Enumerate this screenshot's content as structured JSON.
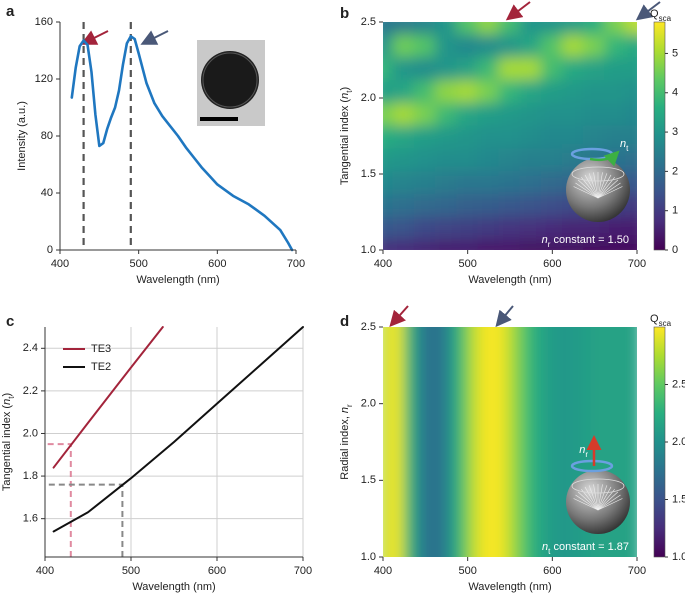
{
  "chart_data": [
    {
      "type": "line",
      "panel": "a",
      "xlabel": "Wavelength (nm)",
      "ylabel": [
        {
          "text": "Intensity (a.u.)"
        }
      ],
      "xlim": [
        400,
        700
      ],
      "xticks": [
        400,
        500,
        600,
        700
      ],
      "ylim": [
        0,
        160
      ],
      "yticks": [
        0,
        40,
        80,
        120,
        160
      ],
      "series": [
        {
          "color": "#1f77c0",
          "x": [
            415,
            420,
            425,
            430,
            435,
            440,
            445,
            450,
            455,
            460,
            465,
            470,
            475,
            480,
            485,
            490,
            495,
            500,
            510,
            520,
            530,
            540,
            550,
            560,
            570,
            580,
            590,
            600,
            620,
            640,
            660,
            680,
            690,
            695
          ],
          "values": [
            107,
            128,
            143,
            147,
            144,
            125,
            95,
            73,
            75,
            85,
            93,
            100,
            112,
            130,
            145,
            150,
            148,
            138,
            117,
            103,
            94,
            87,
            80,
            72,
            65,
            58,
            52,
            46,
            38,
            32,
            24,
            14,
            5,
            0
          ]
        }
      ],
      "vlines": [
        430,
        490
      ],
      "vline_color": "#555555"
    },
    {
      "type": "heatmap",
      "panel": "b",
      "xlabel": "Wavelength (nm)",
      "ylabel": [
        {
          "text": "Tangential index ("
        },
        {
          "text": "n",
          "style": "italic"
        },
        {
          "text": "t",
          "style": "sub"
        },
        {
          "text": ")"
        }
      ],
      "xlim": [
        400,
        700
      ],
      "xticks": [
        400,
        500,
        600,
        700
      ],
      "ylim": [
        1.0,
        2.5
      ],
      "yticks": [
        {
          "value": 1.0,
          "label": "1.0"
        },
        1.5,
        {
          "value": 2.0,
          "label": "2.0"
        },
        2.5
      ],
      "colormap": "viridis",
      "zlim": [
        0,
        5.8
      ],
      "zticks": [
        0,
        1,
        2,
        3,
        4,
        5
      ],
      "zlabel": [
        {
          "text": "Q"
        },
        {
          "text": "sca",
          "style": "sub"
        }
      ],
      "annotation": [
        {
          "text": "n",
          "style": "italic"
        },
        {
          "text": "r",
          "style": "sub"
        },
        {
          "text": " constant = 1.50"
        }
      ],
      "icon_label": [
        {
          "text": "n",
          "style": "italic"
        },
        {
          "text": "t",
          "style": "sub"
        }
      ],
      "x": [
        400,
        425,
        450,
        475,
        500,
        525,
        550,
        575,
        600,
        625,
        650,
        675,
        700
      ],
      "y": [
        1.0,
        1.15,
        1.3,
        1.45,
        1.6,
        1.75,
        1.9,
        2.05,
        2.2,
        2.35,
        2.5
      ],
      "z": [
        [
          0.8,
          0.7,
          0.6,
          0.5,
          0.5,
          0.4,
          0.4,
          0.3,
          0.3,
          0.3,
          0.2,
          0.2,
          0.2
        ],
        [
          1.6,
          1.5,
          1.3,
          1.2,
          1.1,
          1.0,
          0.9,
          0.8,
          0.7,
          0.6,
          0.6,
          0.5,
          0.5
        ],
        [
          2.2,
          2.1,
          2.0,
          1.9,
          1.8,
          1.7,
          1.6,
          1.5,
          1.4,
          1.3,
          1.2,
          1.1,
          1.0
        ],
        [
          2.7,
          2.6,
          2.5,
          2.4,
          2.3,
          2.3,
          2.2,
          2.1,
          2.0,
          1.9,
          1.8,
          1.7,
          1.6
        ],
        [
          3.1,
          3.0,
          2.9,
          2.8,
          2.8,
          2.7,
          2.6,
          2.5,
          2.5,
          2.4,
          2.3,
          2.2,
          2.1
        ],
        [
          3.6,
          3.4,
          3.2,
          3.1,
          3.0,
          2.9,
          2.9,
          2.8,
          2.7,
          2.7,
          2.6,
          2.5,
          2.5
        ],
        [
          4.6,
          5.0,
          4.6,
          3.9,
          3.4,
          3.2,
          3.1,
          3.0,
          2.9,
          2.9,
          2.8,
          2.8,
          2.7
        ],
        [
          3.2,
          3.4,
          4.0,
          4.8,
          5.0,
          4.6,
          3.8,
          3.4,
          3.2,
          3.1,
          3.0,
          3.0,
          2.9
        ],
        [
          3.8,
          3.0,
          2.8,
          3.0,
          3.3,
          3.9,
          5.0,
          5.0,
          4.0,
          3.5,
          3.3,
          3.2,
          3.2
        ],
        [
          3.0,
          4.5,
          4.2,
          3.0,
          2.7,
          2.8,
          3.0,
          3.4,
          4.2,
          5.0,
          4.6,
          3.8,
          3.5
        ],
        [
          2.3,
          2.4,
          2.6,
          3.0,
          4.2,
          4.8,
          4.0,
          3.0,
          3.0,
          3.2,
          3.6,
          4.6,
          5.2
        ]
      ]
    },
    {
      "type": "line",
      "panel": "c",
      "xlabel": "Wavelength (nm)",
      "ylabel": [
        {
          "text": "Tangential index ("
        },
        {
          "text": "n",
          "style": "italic"
        },
        {
          "text": "t",
          "style": "sub"
        },
        {
          "text": ")"
        }
      ],
      "xlim": [
        400,
        700
      ],
      "xticks": [
        400,
        500,
        600,
        700
      ],
      "ylim": [
        1.42,
        2.5
      ],
      "yticks": [
        1.6,
        1.8,
        {
          "value": 2.0,
          "label": "2.0"
        },
        2.2,
        2.4
      ],
      "grid": true,
      "legend": "upper left",
      "series": [
        {
          "name": "TE3",
          "color": "#a3243b",
          "x": [
            410,
            450,
            500,
            537
          ],
          "values": [
            1.84,
            2.05,
            2.31,
            2.5
          ]
        },
        {
          "name": "TE2",
          "color": "#111111",
          "x": [
            410,
            450,
            500,
            550,
            600,
            650,
            700
          ],
          "values": [
            1.54,
            1.63,
            1.79,
            1.96,
            2.14,
            2.32,
            2.5
          ]
        }
      ],
      "guides": [
        {
          "x": 430,
          "y": 1.95,
          "color": "#e08aa0"
        },
        {
          "x": 490,
          "y": 1.76,
          "color": "#888888"
        }
      ]
    },
    {
      "type": "heatmap",
      "panel": "d",
      "xlabel": "Wavelength (nm)",
      "ylabel": [
        {
          "text": "Radial index, "
        },
        {
          "text": "n",
          "style": "italic"
        },
        {
          "text": "r",
          "style": "sub"
        }
      ],
      "xlim": [
        400,
        700
      ],
      "xticks": [
        400,
        500,
        600,
        700
      ],
      "ylim": [
        1.0,
        2.5
      ],
      "yticks": [
        {
          "value": 1.0,
          "label": "1.0"
        },
        1.5,
        {
          "value": 2.0,
          "label": "2.0"
        },
        2.5
      ],
      "colormap": "viridis",
      "zlim": [
        1.0,
        3.0
      ],
      "zticks": [
        {
          "value": 1.0,
          "label": "1.0"
        },
        1.5,
        {
          "value": 2.0,
          "label": "2.0"
        },
        2.5
      ],
      "zlabel": [
        {
          "text": "Q"
        },
        {
          "text": "sca",
          "style": "sub"
        }
      ],
      "annotation": [
        {
          "text": "n",
          "style": "italic"
        },
        {
          "text": "t",
          "style": "sub"
        },
        {
          "text": " constant = 1.87"
        }
      ],
      "icon_label": [
        {
          "text": "n",
          "style": "italic"
        },
        {
          "text": "r",
          "style": "sub"
        }
      ],
      "x": [
        400,
        410,
        420,
        430,
        440,
        450,
        460,
        470,
        480,
        490,
        500,
        510,
        520,
        530,
        540,
        550,
        560,
        570,
        580,
        590,
        600,
        610,
        620,
        630,
        640,
        650,
        660,
        670,
        680,
        690,
        700
      ],
      "values": [
        2.7,
        3.0,
        2.9,
        2.4,
        2.0,
        1.8,
        1.7,
        1.8,
        2.0,
        2.3,
        2.6,
        2.85,
        2.95,
        3.0,
        2.95,
        2.8,
        2.6,
        2.4,
        2.25,
        2.15,
        2.1,
        2.05,
        2.05,
        2.1,
        2.1,
        2.15,
        2.15,
        2.15,
        2.15,
        2.15,
        2.15
      ]
    }
  ]
}
